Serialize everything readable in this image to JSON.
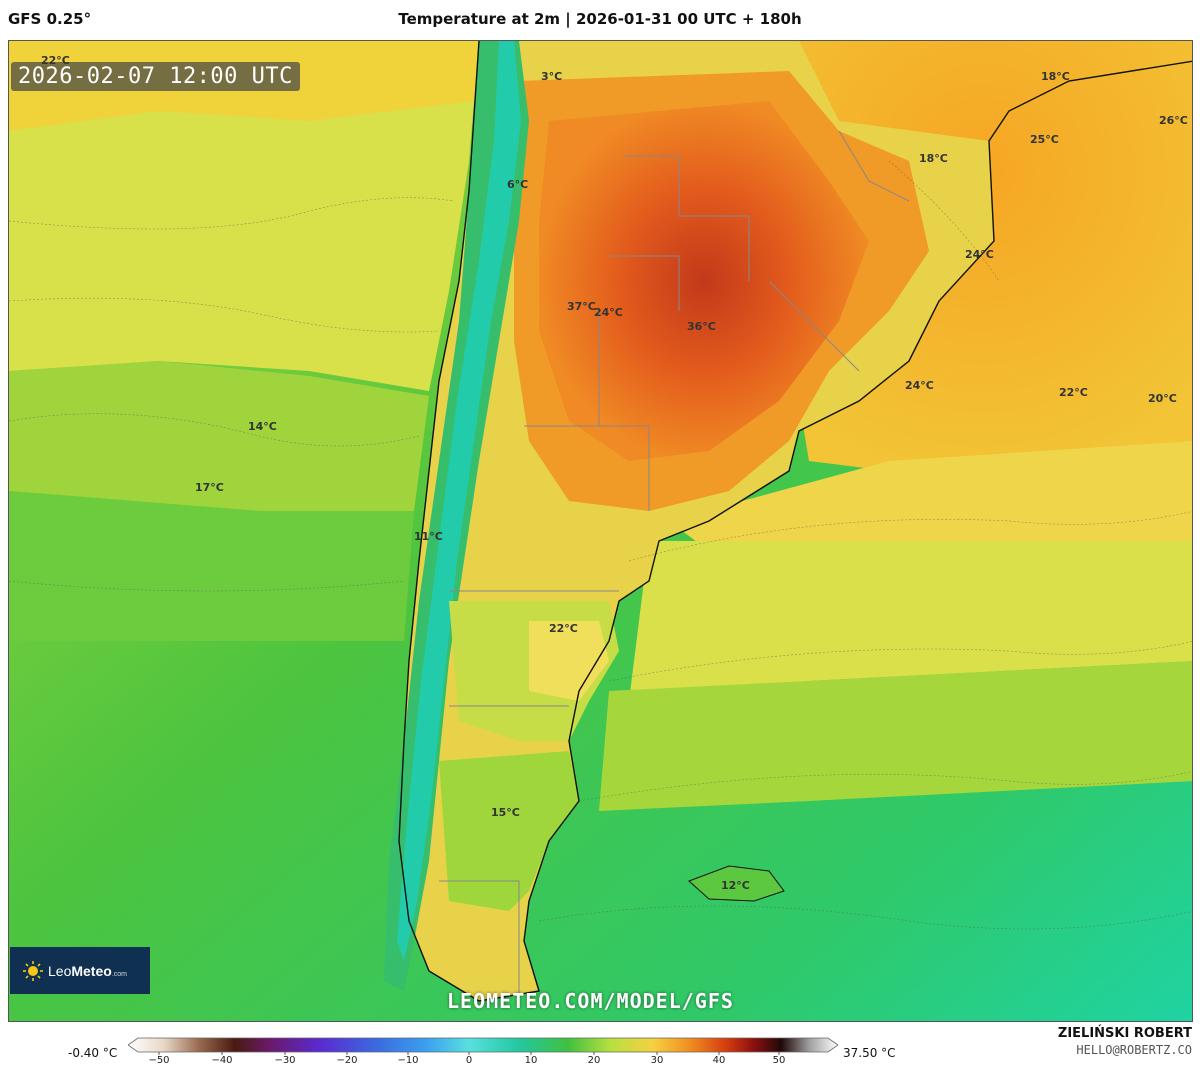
{
  "header": {
    "model": "GFS 0.25°",
    "title": "Temperature at 2m | 2026-01-31 00 UTC + 180h"
  },
  "map": {
    "valid_time": "2026-02-07 12:00 UTC",
    "overlay_url": "LEOMETEO.COM/MODEL/GFS",
    "labels": [
      {
        "text": "22°C"
      },
      {
        "text": "3°C"
      },
      {
        "text": "18°C"
      },
      {
        "text": "26°C"
      },
      {
        "text": "25°C"
      },
      {
        "text": "18°C"
      },
      {
        "text": "6°C"
      },
      {
        "text": "24°C"
      },
      {
        "text": "37°C"
      },
      {
        "text": "24°C"
      },
      {
        "text": "36°C"
      },
      {
        "text": "24°C"
      },
      {
        "text": "22°C"
      },
      {
        "text": "20°C"
      },
      {
        "text": "14°C"
      },
      {
        "text": "17°C"
      },
      {
        "text": "11°C"
      },
      {
        "text": "22°C"
      },
      {
        "text": "15°C"
      },
      {
        "text": "12°C"
      }
    ]
  },
  "logo": {
    "name_light": "Leo",
    "name_bold": "Meteo",
    "suffix": ".com"
  },
  "scale": {
    "min_label": "-0.40 °C",
    "max_label": "37.50 °C",
    "ticks": [
      "−50",
      "−40",
      "−30",
      "−20",
      "−10",
      "0",
      "10",
      "20",
      "30",
      "40",
      "50"
    ]
  },
  "author": {
    "name": "ZIELIŃSKI ROBERT",
    "email": "HELLO@ROBERTZ.CO"
  },
  "colors": {
    "hot": "#e3551a",
    "warm": "#f5a623",
    "mild": "#f0df60",
    "cool": "#43c143",
    "cold_ocean": "#1fd1a0"
  }
}
